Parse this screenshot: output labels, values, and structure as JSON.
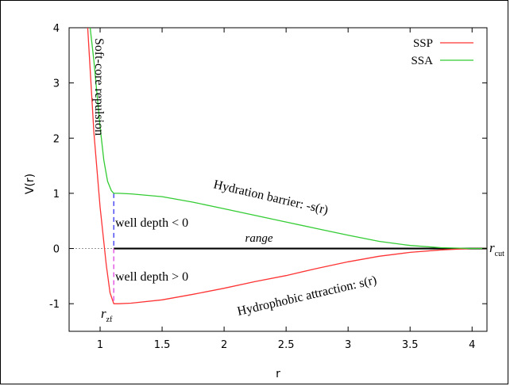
{
  "chart_data": {
    "type": "line",
    "title": "",
    "xlabel": "r",
    "ylabel": "V(r)",
    "xlim": [
      0.75,
      4.12
    ],
    "ylim": [
      -1.5,
      4
    ],
    "x_ticks": [
      1,
      1.5,
      2,
      2.5,
      3,
      3.5,
      4
    ],
    "x_tick_labels": [
      "1",
      "1.5",
      "2",
      "2.5",
      "3",
      "3.5",
      "4"
    ],
    "y_ticks": [
      -1,
      0,
      1,
      2,
      3,
      4
    ],
    "y_tick_labels": [
      "-1",
      "0",
      "1",
      "2",
      "3",
      "4"
    ],
    "legend_position": "top-right",
    "series": [
      {
        "name": "SSP",
        "color": "#ff3333",
        "points": [
          [
            0.9,
            4.0
          ],
          [
            0.95,
            2.1
          ],
          [
            1.0,
            0.75
          ],
          [
            1.05,
            -0.3
          ],
          [
            1.08,
            -0.8
          ],
          [
            1.11,
            -1.0
          ],
          [
            1.15,
            -1.0
          ],
          [
            1.25,
            -0.99
          ],
          [
            1.5,
            -0.93
          ],
          [
            1.75,
            -0.83
          ],
          [
            2.0,
            -0.72
          ],
          [
            2.25,
            -0.6
          ],
          [
            2.5,
            -0.49
          ],
          [
            2.75,
            -0.36
          ],
          [
            3.0,
            -0.24
          ],
          [
            3.25,
            -0.14
          ],
          [
            3.5,
            -0.07
          ],
          [
            3.75,
            -0.025
          ],
          [
            4.0,
            0.0
          ],
          [
            4.12,
            0.0
          ]
        ]
      },
      {
        "name": "SSA",
        "color": "#33cc33",
        "points": [
          [
            0.92,
            4.0
          ],
          [
            0.95,
            3.4
          ],
          [
            1.0,
            2.2
          ],
          [
            1.03,
            1.6
          ],
          [
            1.06,
            1.22
          ],
          [
            1.09,
            1.05
          ],
          [
            1.11,
            1.0
          ],
          [
            1.15,
            1.0
          ],
          [
            1.25,
            0.99
          ],
          [
            1.5,
            0.94
          ],
          [
            1.75,
            0.84
          ],
          [
            2.0,
            0.72
          ],
          [
            2.25,
            0.6
          ],
          [
            2.5,
            0.48
          ],
          [
            2.75,
            0.36
          ],
          [
            3.0,
            0.24
          ],
          [
            3.25,
            0.13
          ],
          [
            3.5,
            0.055
          ],
          [
            3.75,
            0.015
          ],
          [
            4.0,
            0.0
          ],
          [
            4.12,
            0.0
          ]
        ]
      }
    ],
    "annotations": {
      "soft_core": "Soft-core repulsion",
      "barrier": "Hydration barrier: -s(r)",
      "attraction": "Hydrophobic attraction: s(r)",
      "well_neg": "well depth <  0",
      "well_pos": "well depth >  0",
      "range": "range",
      "r_zf": "r",
      "r_zf_sub": "zf",
      "r_cut": "r",
      "r_cut_sub": "cut"
    },
    "markers": {
      "r_zf": 1.11,
      "r_cut": 4.12
    }
  }
}
